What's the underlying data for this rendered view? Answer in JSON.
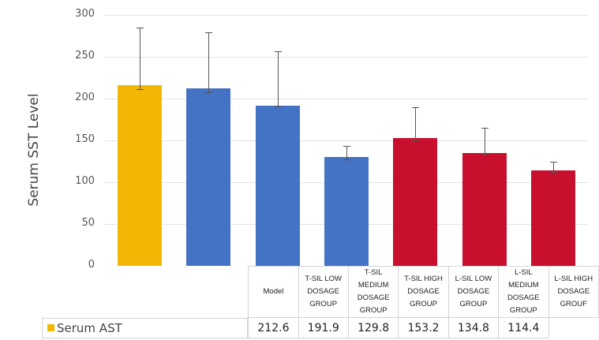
{
  "chart_data": {
    "type": "bar",
    "title": "",
    "xlabel": "",
    "ylabel": "Serum SST Level",
    "ylim": [
      0,
      300
    ],
    "yticks": [
      0,
      50,
      100,
      150,
      200,
      250,
      300
    ],
    "grid": true,
    "legend_position": "data-table",
    "categories": [
      "Model",
      "T-SIL LOW DOSAGE GROUP",
      "T-SIL MEDIUM DOSAGE GROUP",
      "T-SIL HIGH DOSAGE GROUP",
      "L-SIL LOW DOSAGE GROUP",
      "L-SIL MEDIUM DOSAGE GROUP",
      "L-SIL HIGH DOSAGE GROUP"
    ],
    "category_lines": [
      [
        "Model",
        ""
      ],
      [
        "T-SIL LOW",
        "DOSAGE GROUP"
      ],
      [
        "T-SIL MEDIUM",
        "DOSAGE GROUP"
      ],
      [
        "T-SIL HIGH",
        "DOSAGE GROUP"
      ],
      [
        "L-SIL LOW",
        "DOSAGE GROUP"
      ],
      [
        "L-SIL MEDIUM",
        "DOSAGE GROUP"
      ],
      [
        "L-SIL HIGH",
        "DOSAGE GROUF"
      ]
    ],
    "series": [
      {
        "name": "Serum AST",
        "values": [
          216,
          212.6,
          191.9,
          129.8,
          153.2,
          134.8,
          114.4
        ],
        "table_values": [
          "",
          "212.6",
          "191.9",
          "129.8",
          "153.2",
          "134.8",
          "114.4"
        ],
        "error_upper": [
          285,
          279,
          257,
          143,
          190,
          165,
          125
        ],
        "error_lower": [
          211,
          208,
          191,
          127,
          150,
          133,
          112
        ],
        "colors": [
          "#F2B705",
          "#4472C4",
          "#4472C4",
          "#4472C4",
          "#C8102E",
          "#C8102E",
          "#C8102E"
        ]
      }
    ]
  },
  "legend": {
    "label": "Serum AST",
    "color": "#F2B705"
  }
}
